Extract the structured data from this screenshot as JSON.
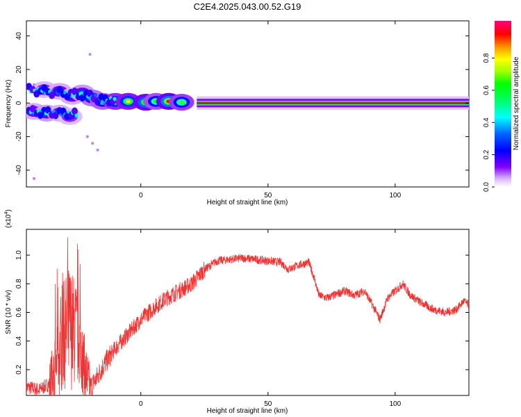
{
  "figure": {
    "title": "C2E4.2025.043.00.52.G19"
  },
  "chart_data": [
    {
      "type": "heatmap",
      "title": "C2E4.2025.043.00.52.G19",
      "xlabel": "Height of straight line (km)",
      "ylabel": "Frequency (Hz)",
      "xlim": [
        -45,
        129
      ],
      "ylim": [
        -50,
        49
      ],
      "xticks": [
        0,
        50,
        100
      ],
      "yticks": [
        -40,
        -20,
        0,
        20,
        40
      ],
      "colorbar": {
        "label": "Normalized spectral amplitude",
        "range": [
          0,
          1
        ],
        "ticks": [
          0.0,
          0.2,
          0.4,
          0.6,
          0.8
        ],
        "colormap": [
          "#ffffff",
          "#d8b4fe",
          "#8000ff",
          "#0000ff",
          "#00ffff",
          "#00ff00",
          "#ffff00",
          "#ff8000",
          "#ff0000",
          "#ff0080"
        ]
      },
      "ridge": {
        "description_points": [
          {
            "x": -42,
            "y": -5,
            "a": 0.35
          },
          {
            "x": -37,
            "y": -6,
            "a": 0.4
          },
          {
            "x": -32,
            "y": -6,
            "a": 0.35
          },
          {
            "x": -28,
            "y": -8,
            "a": 0.3
          },
          {
            "x": -38,
            "y": 8,
            "a": 0.3
          },
          {
            "x": -32,
            "y": 7,
            "a": 0.35
          },
          {
            "x": -27,
            "y": 4,
            "a": 0.35
          },
          {
            "x": -23,
            "y": 6,
            "a": 0.4
          },
          {
            "x": -19,
            "y": 3,
            "a": 0.5
          },
          {
            "x": -15,
            "y": 1,
            "a": 0.55
          },
          {
            "x": -10,
            "y": 1,
            "a": 0.7
          },
          {
            "x": -5,
            "y": 1,
            "a": 0.75
          },
          {
            "x": 2,
            "y": 0.5,
            "a": 0.9
          },
          {
            "x": 6,
            "y": 1,
            "a": 0.6
          },
          {
            "x": 11,
            "y": 1,
            "a": 0.95
          },
          {
            "x": 16,
            "y": 0.5,
            "a": 0.65
          },
          {
            "x": 22,
            "y": 0.5,
            "a": 0.9
          },
          {
            "x": 40,
            "y": 0.3,
            "a": 0.95
          },
          {
            "x": 60,
            "y": 0.3,
            "a": 0.95
          },
          {
            "x": 80,
            "y": 0.3,
            "a": 0.95
          },
          {
            "x": 100,
            "y": 0.3,
            "a": 0.95
          },
          {
            "x": 120,
            "y": 0.3,
            "a": 0.95
          },
          {
            "x": 129,
            "y": 0.3,
            "a": 0.95
          }
        ]
      },
      "scattered_points": [
        {
          "x": -42,
          "y": -45
        },
        {
          "x": -42,
          "y": 11
        },
        {
          "x": -20,
          "y": 29
        },
        {
          "x": -21,
          "y": -20
        },
        {
          "x": -17,
          "y": -28
        },
        {
          "x": -19,
          "y": -24
        }
      ]
    },
    {
      "type": "line",
      "title": "",
      "xlabel": "Height of straight line (km)",
      "ylabel": "SNR (10 * v/v)",
      "scale_note": "(x10",
      "scale_exp": "4",
      "xlim": [
        -45,
        129
      ],
      "ylim": [
        0.02,
        1.18
      ],
      "xticks": [
        0,
        50,
        100
      ],
      "yticks": [
        0.2,
        0.4,
        0.6,
        0.8,
        1.0
      ],
      "series": [
        {
          "color": "#ee3333",
          "trend": [
            [
              -45,
              0.08
            ],
            [
              -40,
              0.06
            ],
            [
              -36,
              0.1
            ],
            [
              -33,
              0.25
            ],
            [
              -30,
              0.45
            ],
            [
              -28,
              0.5
            ],
            [
              -25,
              0.45
            ],
            [
              -22,
              0.2
            ],
            [
              -20,
              0.08
            ],
            [
              -18,
              0.12
            ],
            [
              -15,
              0.22
            ],
            [
              -12,
              0.3
            ],
            [
              -10,
              0.35
            ],
            [
              -5,
              0.45
            ],
            [
              0,
              0.55
            ],
            [
              5,
              0.63
            ],
            [
              10,
              0.7
            ],
            [
              15,
              0.75
            ],
            [
              20,
              0.8
            ],
            [
              25,
              0.9
            ],
            [
              30,
              0.96
            ],
            [
              35,
              0.97
            ],
            [
              40,
              0.98
            ],
            [
              45,
              0.97
            ],
            [
              50,
              0.96
            ],
            [
              55,
              0.95
            ],
            [
              58,
              0.9
            ],
            [
              62,
              0.93
            ],
            [
              66,
              0.95
            ],
            [
              68,
              0.85
            ],
            [
              70,
              0.72
            ],
            [
              73,
              0.7
            ],
            [
              76,
              0.72
            ],
            [
              80,
              0.75
            ],
            [
              84,
              0.72
            ],
            [
              88,
              0.75
            ],
            [
              92,
              0.62
            ],
            [
              94,
              0.55
            ],
            [
              97,
              0.7
            ],
            [
              100,
              0.75
            ],
            [
              103,
              0.8
            ],
            [
              106,
              0.72
            ],
            [
              110,
              0.67
            ],
            [
              115,
              0.62
            ],
            [
              120,
              0.6
            ],
            [
              124,
              0.62
            ],
            [
              127,
              0.68
            ],
            [
              129,
              0.65
            ]
          ]
        }
      ]
    }
  ]
}
